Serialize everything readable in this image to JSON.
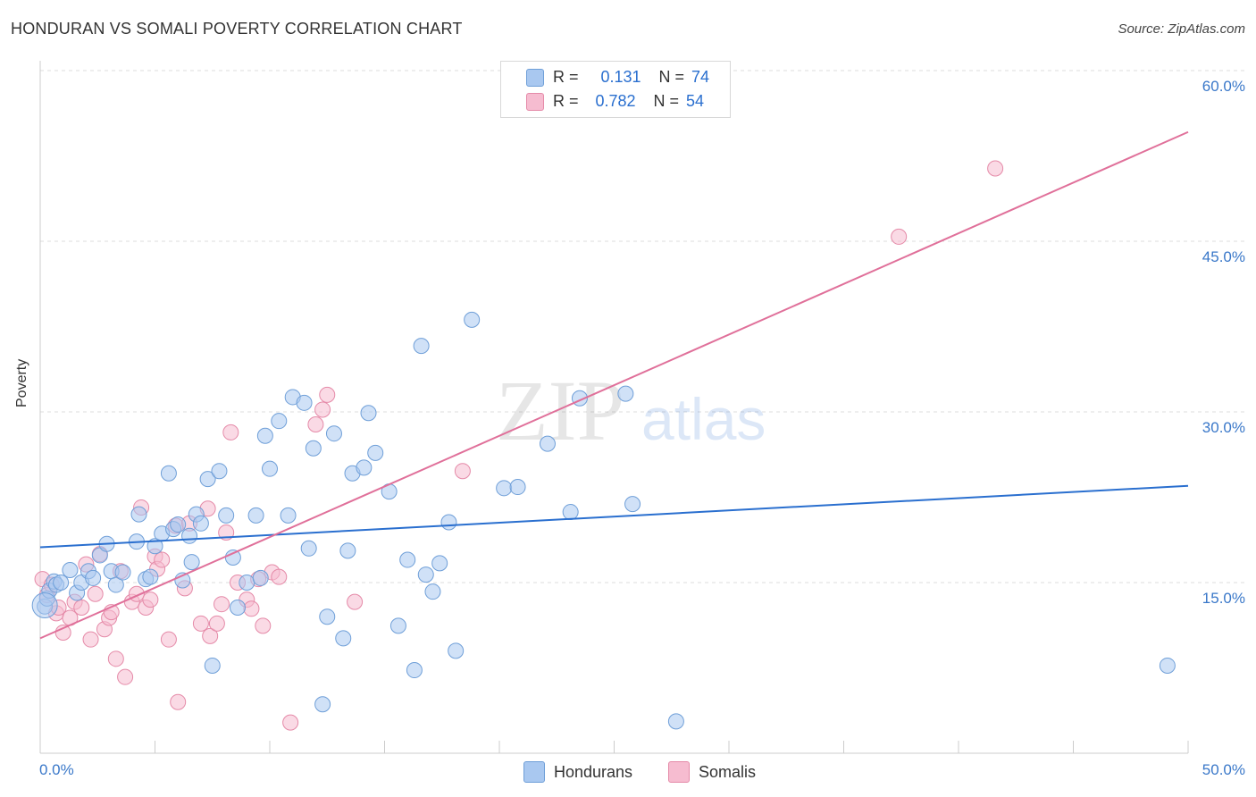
{
  "header": {
    "title": "HONDURAN VS SOMALI POVERTY CORRELATION CHART",
    "source": "Source: ZipAtlas.com"
  },
  "watermark": {
    "zip": "ZIP",
    "atlas": "atlas"
  },
  "legend": {
    "rows": [
      {
        "r_label": "R =",
        "r_value": "0.131",
        "n_label": "N =",
        "n_value": "74"
      },
      {
        "r_label": "R =",
        "r_value": "0.782",
        "n_label": "N =",
        "n_value": "54"
      }
    ],
    "bottom": [
      "Hondurans",
      "Somalis"
    ]
  },
  "colors": {
    "hondurans_fill": "#a9c8f0",
    "hondurans_stroke": "#6f9fd8",
    "hondurans_line": "#2a6fcf",
    "somalis_fill": "#f6bcd0",
    "somalis_stroke": "#e58aa8",
    "somalis_line": "#e0709a",
    "tick_text": "#3a78c9"
  },
  "chart_data": {
    "type": "scatter",
    "title": "HONDURAN VS SOMALI POVERTY CORRELATION CHART",
    "xlabel": "",
    "ylabel": "Poverty",
    "xlim": [
      0,
      50
    ],
    "ylim": [
      0,
      60
    ],
    "x_tick_labels": [
      "0.0%",
      "50.0%"
    ],
    "y_tick_labels": [
      "15.0%",
      "30.0%",
      "45.0%",
      "60.0%"
    ],
    "y_ticks": [
      15,
      30,
      45,
      60
    ],
    "grid": "horizontal dashed",
    "legend_position": "top-center",
    "series": [
      {
        "name": "Hondurans",
        "r": 0.131,
        "n": 74,
        "trend": {
          "x": [
            0,
            50
          ],
          "y": [
            18.1,
            23.5
          ]
        },
        "points": [
          [
            0.2,
            12.9
          ],
          [
            0.3,
            13.6
          ],
          [
            0.4,
            14.3
          ],
          [
            0.6,
            15.1
          ],
          [
            0.7,
            14.8
          ],
          [
            0.9,
            15.0
          ],
          [
            1.3,
            16.1
          ],
          [
            1.6,
            14.1
          ],
          [
            1.8,
            15.0
          ],
          [
            2.1,
            16.0
          ],
          [
            2.3,
            15.4
          ],
          [
            2.6,
            17.4
          ],
          [
            2.9,
            18.4
          ],
          [
            3.1,
            16.0
          ],
          [
            3.3,
            14.8
          ],
          [
            3.6,
            15.9
          ],
          [
            4.2,
            18.6
          ],
          [
            4.3,
            21.0
          ],
          [
            4.6,
            15.3
          ],
          [
            4.8,
            15.5
          ],
          [
            5.0,
            18.2
          ],
          [
            5.3,
            19.3
          ],
          [
            5.6,
            24.6
          ],
          [
            5.8,
            19.7
          ],
          [
            6.0,
            20.1
          ],
          [
            6.2,
            15.2
          ],
          [
            6.5,
            19.1
          ],
          [
            6.6,
            16.8
          ],
          [
            6.8,
            21.0
          ],
          [
            7.0,
            20.2
          ],
          [
            7.3,
            24.1
          ],
          [
            7.5,
            7.7
          ],
          [
            7.8,
            24.8
          ],
          [
            8.1,
            20.9
          ],
          [
            8.4,
            17.2
          ],
          [
            8.6,
            12.8
          ],
          [
            9.0,
            15.0
          ],
          [
            9.4,
            20.9
          ],
          [
            9.6,
            15.4
          ],
          [
            9.8,
            27.9
          ],
          [
            10.0,
            25.0
          ],
          [
            10.4,
            29.2
          ],
          [
            10.8,
            20.9
          ],
          [
            11.0,
            31.3
          ],
          [
            11.5,
            30.8
          ],
          [
            11.7,
            18.0
          ],
          [
            11.9,
            26.8
          ],
          [
            12.3,
            4.3
          ],
          [
            12.5,
            12.0
          ],
          [
            12.8,
            28.1
          ],
          [
            13.2,
            10.1
          ],
          [
            13.4,
            17.8
          ],
          [
            13.6,
            24.6
          ],
          [
            14.1,
            25.1
          ],
          [
            14.3,
            29.9
          ],
          [
            14.6,
            26.4
          ],
          [
            15.2,
            23.0
          ],
          [
            15.6,
            11.2
          ],
          [
            16.0,
            17.0
          ],
          [
            16.3,
            7.3
          ],
          [
            16.6,
            35.8
          ],
          [
            16.8,
            15.7
          ],
          [
            17.1,
            14.2
          ],
          [
            17.4,
            16.7
          ],
          [
            17.8,
            20.3
          ],
          [
            18.1,
            9.0
          ],
          [
            18.8,
            38.1
          ],
          [
            20.2,
            23.3
          ],
          [
            20.8,
            23.4
          ],
          [
            22.1,
            27.2
          ],
          [
            23.1,
            21.2
          ],
          [
            23.5,
            31.2
          ],
          [
            25.5,
            31.6
          ],
          [
            25.8,
            21.9
          ],
          [
            27.7,
            2.8
          ],
          [
            49.1,
            7.7
          ]
        ]
      },
      {
        "name": "Somalis",
        "r": 0.782,
        "n": 54,
        "trend": {
          "x": [
            0,
            50
          ],
          "y": [
            10.1,
            54.6
          ]
        },
        "points": [
          [
            0.1,
            15.3
          ],
          [
            0.3,
            13.9
          ],
          [
            0.5,
            14.8
          ],
          [
            0.7,
            12.3
          ],
          [
            0.8,
            12.8
          ],
          [
            1.0,
            10.6
          ],
          [
            1.3,
            11.9
          ],
          [
            1.5,
            13.3
          ],
          [
            1.8,
            12.8
          ],
          [
            2.0,
            16.6
          ],
          [
            2.2,
            10.0
          ],
          [
            2.4,
            14.0
          ],
          [
            2.6,
            17.5
          ],
          [
            2.8,
            10.9
          ],
          [
            3.0,
            11.9
          ],
          [
            3.1,
            12.4
          ],
          [
            3.3,
            8.3
          ],
          [
            3.5,
            16.0
          ],
          [
            3.7,
            6.7
          ],
          [
            4.0,
            13.3
          ],
          [
            4.2,
            14.0
          ],
          [
            4.4,
            21.6
          ],
          [
            4.6,
            12.8
          ],
          [
            4.8,
            13.5
          ],
          [
            5.0,
            17.3
          ],
          [
            5.1,
            16.2
          ],
          [
            5.3,
            17.0
          ],
          [
            5.6,
            10.0
          ],
          [
            5.9,
            20.0
          ],
          [
            6.0,
            4.5
          ],
          [
            6.3,
            14.5
          ],
          [
            6.5,
            20.2
          ],
          [
            7.0,
            11.4
          ],
          [
            7.3,
            21.5
          ],
          [
            7.4,
            10.3
          ],
          [
            7.7,
            11.4
          ],
          [
            7.9,
            13.1
          ],
          [
            8.1,
            19.4
          ],
          [
            8.3,
            28.2
          ],
          [
            8.6,
            15.0
          ],
          [
            9.0,
            13.5
          ],
          [
            9.2,
            12.7
          ],
          [
            9.5,
            15.3
          ],
          [
            9.7,
            11.2
          ],
          [
            10.1,
            15.9
          ],
          [
            10.4,
            15.5
          ],
          [
            10.9,
            2.7
          ],
          [
            12.0,
            28.9
          ],
          [
            12.3,
            30.2
          ],
          [
            12.5,
            31.5
          ],
          [
            13.7,
            13.3
          ],
          [
            18.4,
            24.8
          ],
          [
            37.4,
            45.4
          ],
          [
            41.6,
            51.4
          ]
        ]
      }
    ]
  }
}
